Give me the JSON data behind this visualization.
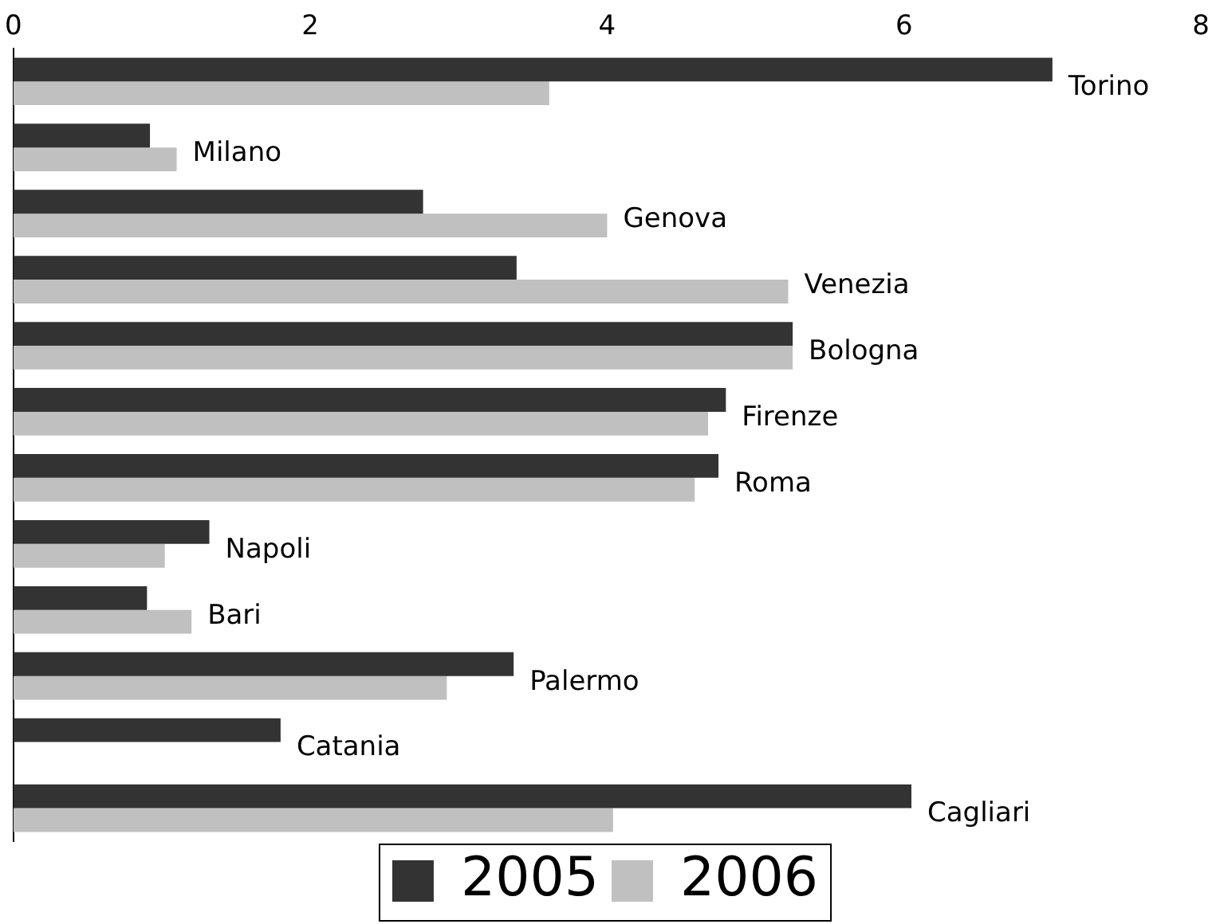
{
  "chart_data": {
    "type": "bar",
    "orientation": "horizontal",
    "categories": [
      "Torino",
      "Milano",
      "Genova",
      "Venezia",
      "Bologna",
      "Firenze",
      "Roma",
      "Napoli",
      "Bari",
      "Palermo",
      "Catania",
      "Cagliari"
    ],
    "series": [
      {
        "name": "2005",
        "color": "#333333",
        "values": [
          7.0,
          0.92,
          2.76,
          3.39,
          5.25,
          4.8,
          4.75,
          1.32,
          0.9,
          3.37,
          1.8,
          6.05
        ]
      },
      {
        "name": "2006",
        "color": "#c0c0c0",
        "values": [
          3.61,
          1.1,
          4.0,
          5.22,
          5.25,
          4.68,
          4.59,
          1.02,
          1.2,
          2.92,
          null,
          4.04
        ]
      }
    ],
    "xlim": [
      0,
      8
    ],
    "xticks": [
      0,
      2,
      4,
      6,
      8
    ],
    "tick_labels": "x",
    "grid": false,
    "legend": "bottom"
  }
}
